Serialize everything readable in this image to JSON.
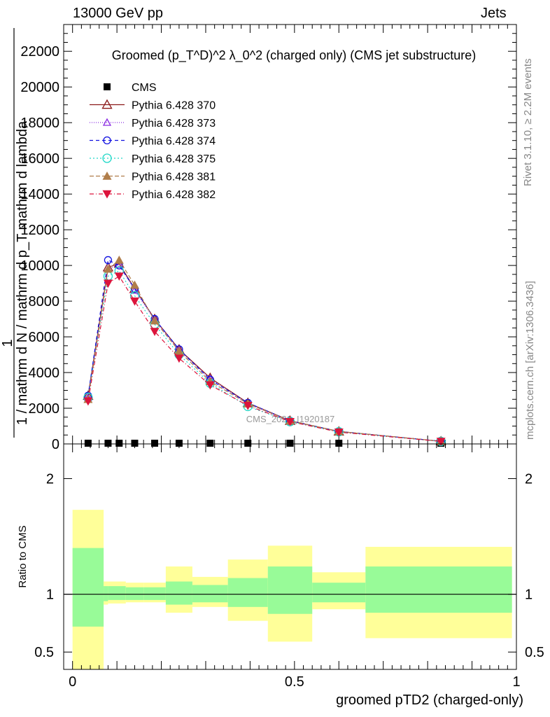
{
  "header": {
    "energy": "13000 GeV pp",
    "category": "Jets",
    "rivet": "Rivet 3.1.10, ≥ 2.2M events",
    "mcplots": "mcplots.cern.ch [arXiv:1306.3436]",
    "watermark": "CMS_2021_I1920187"
  },
  "chart_data": [
    {
      "type": "line",
      "title": "Groomed (p_T^D)^2 λ_0^2 (charged only) (CMS jet substructure)",
      "ylabel": "1 / mathrm d N / mathrm d p_T mathrm d lambda",
      "ylim": [
        0,
        23500
      ],
      "xlim": [
        -0.02,
        1.0
      ],
      "yticks": [
        0,
        2000,
        4000,
        6000,
        8000,
        10000,
        12000,
        14000,
        16000,
        18000,
        20000,
        22000
      ],
      "x": [
        0.035,
        0.08,
        0.105,
        0.14,
        0.185,
        0.24,
        0.31,
        0.395,
        0.49,
        0.6,
        0.83
      ],
      "series": [
        {
          "name": "CMS",
          "style": "square",
          "color": "#000000",
          "values": [
            40,
            40,
            40,
            40,
            40,
            40,
            40,
            40,
            40,
            40,
            40
          ]
        },
        {
          "name": "Pythia 6.428 370",
          "style": "triangle-open",
          "dash": "",
          "color": "#8b1a1a",
          "values": [
            2700,
            9900,
            10100,
            8700,
            7000,
            5300,
            3700,
            2300,
            1300,
            700,
            150
          ]
        },
        {
          "name": "Pythia 6.428 373",
          "style": "triangle-open-small",
          "dash": "1,2",
          "color": "#8a2be2",
          "values": [
            2600,
            9800,
            10050,
            8600,
            6950,
            5250,
            3650,
            2250,
            1280,
            690,
            150
          ]
        },
        {
          "name": "Pythia 6.428 374",
          "style": "circle-open",
          "dash": "5,4",
          "color": "#1010e0",
          "values": [
            2700,
            10300,
            10000,
            8700,
            7000,
            5300,
            3600,
            2300,
            1300,
            700,
            150
          ]
        },
        {
          "name": "Pythia 6.428 375",
          "style": "circle-open-large",
          "dash": "2,3",
          "color": "#20d8c8",
          "values": [
            2600,
            9400,
            9700,
            8300,
            6700,
            5000,
            3400,
            2100,
            1250,
            680,
            140
          ]
        },
        {
          "name": "Pythia 6.428 381",
          "style": "triangle-filled",
          "dash": "6,3",
          "color": "#b07d4a",
          "values": [
            2500,
            9800,
            10300,
            8900,
            6900,
            5200,
            3500,
            2250,
            1300,
            700,
            150
          ]
        },
        {
          "name": "Pythia 6.428 382",
          "style": "triangle-down-filled",
          "dash": "6,3,1,3",
          "color": "#dc143c",
          "values": [
            2400,
            9000,
            9400,
            8000,
            6300,
            4800,
            3300,
            2150,
            1250,
            660,
            140
          ]
        }
      ]
    },
    {
      "type": "area",
      "ylabel": "Ratio to CMS",
      "xlabel": "groomed pTD2 (charged-only)",
      "ylim": [
        0.35,
        2.3
      ],
      "ytick_values": [
        0.5,
        1,
        2
      ],
      "ytick_labels": [
        "0.5",
        "1",
        "2"
      ],
      "xtick_values": [
        0,
        0.5,
        1
      ],
      "xtick_labels": [
        "0",
        "0.5",
        "1"
      ],
      "bins": [
        {
          "lo": 0.0,
          "hi": 0.07,
          "in_lo": 0.72,
          "in_hi": 1.4,
          "out_lo": 0.35,
          "out_hi": 1.73
        },
        {
          "lo": 0.07,
          "hi": 0.08,
          "in_lo": 0.94,
          "in_hi": 1.07,
          "out_lo": 0.91,
          "out_hi": 1.11
        },
        {
          "lo": 0.08,
          "hi": 0.12,
          "in_lo": 0.95,
          "in_hi": 1.07,
          "out_lo": 0.92,
          "out_hi": 1.11
        },
        {
          "lo": 0.12,
          "hi": 0.16,
          "in_lo": 0.95,
          "in_hi": 1.06,
          "out_lo": 0.93,
          "out_hi": 1.1
        },
        {
          "lo": 0.16,
          "hi": 0.21,
          "in_lo": 0.95,
          "in_hi": 1.06,
          "out_lo": 0.93,
          "out_hi": 1.1
        },
        {
          "lo": 0.21,
          "hi": 0.27,
          "in_lo": 0.91,
          "in_hi": 1.11,
          "out_lo": 0.84,
          "out_hi": 1.24
        },
        {
          "lo": 0.27,
          "hi": 0.35,
          "in_lo": 0.93,
          "in_hi": 1.08,
          "out_lo": 0.89,
          "out_hi": 1.15
        },
        {
          "lo": 0.35,
          "hi": 0.44,
          "in_lo": 0.89,
          "in_hi": 1.14,
          "out_lo": 0.77,
          "out_hi": 1.3
        },
        {
          "lo": 0.44,
          "hi": 0.54,
          "in_lo": 0.83,
          "in_hi": 1.24,
          "out_lo": 0.59,
          "out_hi": 1.42
        },
        {
          "lo": 0.54,
          "hi": 0.66,
          "in_lo": 0.93,
          "in_hi": 1.1,
          "out_lo": 0.87,
          "out_hi": 1.19
        },
        {
          "lo": 0.66,
          "hi": 0.99,
          "in_lo": 0.84,
          "in_hi": 1.24,
          "out_lo": 0.62,
          "out_hi": 1.41
        }
      ],
      "inner_color": "#98fb98",
      "outer_color": "#ffff99"
    }
  ]
}
